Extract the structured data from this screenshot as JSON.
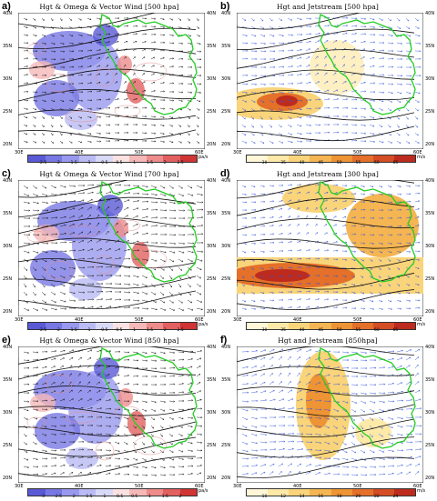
{
  "colors": {
    "omega_bar": [
      "#5a5ad6",
      "#7878e4",
      "#9898ee",
      "#babaf4",
      "#d9d9f8",
      "#fbe2e2",
      "#f5b8b8",
      "#ee8c8c",
      "#e26060",
      "#d03434"
    ],
    "jet_bar": [
      "#fff7d8",
      "#fde9a8",
      "#f9d47a",
      "#f4b552",
      "#ee9434",
      "#e4702a",
      "#d44d24",
      "#bd2b1e"
    ],
    "border": "#22cc22",
    "contour": "#111111",
    "wind_vector_blue": "#3355dd"
  },
  "map_axes": {
    "lat_labels": [
      "40N",
      "35N",
      "30N",
      "25N",
      "20N"
    ],
    "lon_labels": [
      "30E",
      "40E",
      "50E",
      "60E"
    ]
  },
  "panels": [
    {
      "id": "a",
      "label": "a)",
      "title": "Hgt & Omega & Vector Wind [500 hpa]",
      "type": "omega",
      "colorbar_ticks": [
        "-2.5",
        "-2",
        "-1.5",
        "-1",
        "-0.5",
        "0.5",
        "1",
        "1.5",
        "2",
        "2.5"
      ],
      "unit": "pa/s"
    },
    {
      "id": "b",
      "label": "b)",
      "title": "Hgt and Jetstream [500 hpa]",
      "type": "jet",
      "colorbar_ticks": [
        "30",
        "35",
        "40",
        "45",
        "50",
        "55",
        "60",
        "65"
      ],
      "unit": "m/s"
    },
    {
      "id": "c",
      "label": "c)",
      "title": "Hgt & Omega & Vector Wind [700 hpa]",
      "type": "omega",
      "colorbar_ticks": [
        "-2.5",
        "-2",
        "-1.5",
        "-1",
        "-0.5",
        "0.5",
        "1",
        "1.5",
        "2",
        "2.5"
      ],
      "unit": "pa/s"
    },
    {
      "id": "d",
      "label": "d)",
      "title": "Hgt and Jetstream [300 hpa]",
      "type": "jet",
      "colorbar_ticks": [
        "30",
        "35",
        "40",
        "45",
        "50",
        "55",
        "60",
        "65"
      ],
      "unit": "m/s"
    },
    {
      "id": "e",
      "label": "e)",
      "title": "Hgt & Omega & Vector Wind [850 hpa]",
      "type": "omega",
      "colorbar_ticks": [
        "-3",
        "-2.5",
        "-2",
        "-1.5",
        "-1",
        "-0.5",
        "0.5",
        "1",
        "1.5",
        "2"
      ],
      "unit": "pa/s"
    },
    {
      "id": "f",
      "label": "f)",
      "title": "Hgt and Jetstream [850hpa]",
      "type": "jet",
      "colorbar_ticks": [
        "10",
        "12",
        "14",
        "16",
        "18",
        "20",
        "22",
        "24"
      ],
      "unit": "m/s"
    }
  ]
}
